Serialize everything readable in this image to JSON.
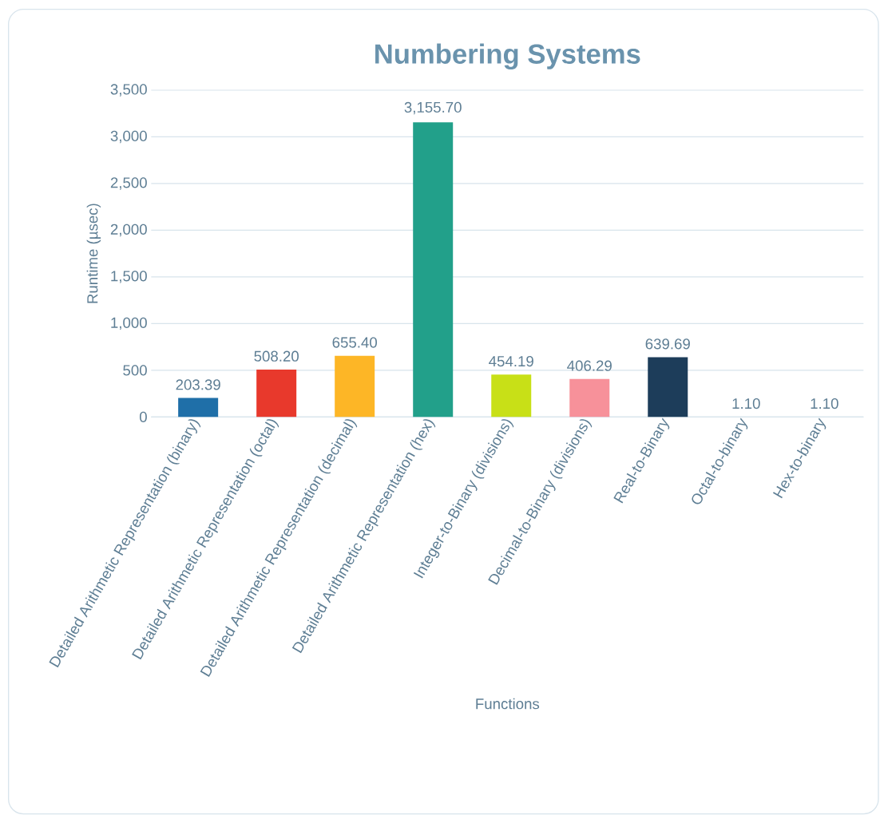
{
  "chart_data": {
    "type": "bar",
    "title": "Numbering Systems",
    "xlabel": "Functions",
    "ylabel": "Runtime (µsec)",
    "categories": [
      "Detailed Arithmetic Representation (binary)",
      "Detailed Arithmetic Representation (octal)",
      "Detailed Arithmetic Representation (decimal)",
      "Detailed Arithmetic Representation (hex)",
      "Integer-to-Binary (divisions)",
      "Decimal-to-Binary (divisions)",
      "Real-to-Binary",
      "Octal-to-binary",
      "Hex-to-binary"
    ],
    "values": [
      203.39,
      508.2,
      655.4,
      3155.7,
      454.19,
      406.29,
      639.69,
      1.1,
      1.1
    ],
    "value_labels": [
      "203.39",
      "508.20",
      "655.40",
      "3,155.70",
      "454.19",
      "406.29",
      "639.69",
      "1.10",
      "1.10"
    ],
    "colors": [
      "#1f6fa8",
      "#e8392c",
      "#fdb626",
      "#22a08a",
      "#c8e017",
      "#f7919a",
      "#1d3d5a",
      "#7b5ea7",
      "#f08030"
    ],
    "ylim": [
      0,
      3500
    ],
    "yticks": [
      0,
      500,
      {
        "value": 1000,
        "label": "1,000"
      },
      {
        "value": 1500,
        "label": "1,500"
      },
      {
        "value": 2000,
        "label": "2,000"
      },
      {
        "value": 2500,
        "label": "2,500"
      },
      {
        "value": 3000,
        "label": "3,000"
      },
      {
        "value": 3500,
        "label": "3,500"
      }
    ],
    "grid": "y"
  }
}
